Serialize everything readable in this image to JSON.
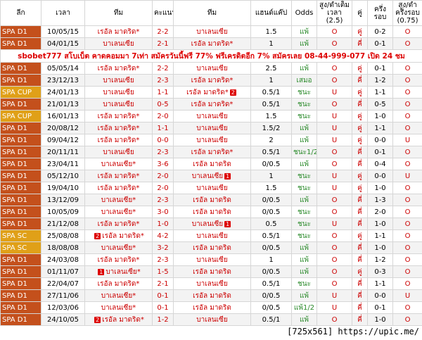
{
  "header": [
    "ลีก",
    "เวลา",
    "ทีม",
    "คะแนน",
    "ทีม",
    "แฮนด์แค๊ป",
    "Odds",
    "สูง/ต่ำเต็มเวลา (2.5)",
    "คู่",
    "ครึ่งรอบ",
    "สูง/ต่ำครึ่งรอบ (0.75)"
  ],
  "rows": [
    {
      "cells": [
        "SPA D1",
        "10/05/15",
        "เรอัล มาดริด*",
        "2-2",
        "บาเลนเซีย",
        "1.5",
        "แพ้",
        "O",
        "คู่",
        "0-2",
        "O"
      ],
      "league_color": "#c4501c"
    },
    {
      "cells": [
        "SPA D1",
        "04/01/15",
        "บาเลนเซีย",
        "2-1",
        "เรอัล มาดริด*",
        "1",
        "แพ้",
        "O",
        "คี่",
        "0-1",
        "O"
      ],
      "league_color": "#c4501c"
    },
    {
      "banner": "sbobet777 สโบเบ็ต คาดคอมมา 7เท่า สมัครวันนี้ฟรี 77% ฟรีเครดิตอีก 7% สมัครเลย 08-44-999-077 เปิด 24 ชม"
    },
    {
      "cells": [
        "SPA D1",
        "05/05/14",
        "เรอัล มาดริด*",
        "2-2",
        "บาเลนเซีย",
        "2.5",
        "แพ้",
        "O",
        "คู่",
        "0-1",
        "O"
      ],
      "league_color": "#c4501c"
    },
    {
      "cells": [
        "SPA D1",
        "23/12/13",
        "บาเลนเซีย",
        "2-3",
        "เรอัล มาดริด*",
        "1",
        "เสมอ",
        "O",
        "คี่",
        "1-2",
        "O"
      ],
      "league_color": "#c4501c"
    },
    {
      "cells": [
        "SPA CUP",
        "24/01/13",
        "บาเลนเซีย",
        "1-1",
        "เรอัล มาดริด*",
        "0.5/1",
        "ชนะ",
        "U",
        "คู่",
        "1-1",
        "O"
      ],
      "league_color": "#e0a018",
      "away_card": "2"
    },
    {
      "cells": [
        "SPA D1",
        "21/01/13",
        "บาเลนเซีย",
        "0-5",
        "เรอัล มาดริด*",
        "0.5/1",
        "ชนะ",
        "O",
        "คี่",
        "0-5",
        "O"
      ],
      "league_color": "#c4501c"
    },
    {
      "cells": [
        "SPA CUP",
        "16/01/13",
        "เรอัล มาดริด*",
        "2-0",
        "บาเลนเซีย",
        "1.5",
        "ชนะ",
        "U",
        "คู่",
        "1-0",
        "O"
      ],
      "league_color": "#e0a018"
    },
    {
      "cells": [
        "SPA D1",
        "20/08/12",
        "เรอัล มาดริด*",
        "1-1",
        "บาเลนเซีย",
        "1.5/2",
        "แพ้",
        "U",
        "คู่",
        "1-1",
        "O"
      ],
      "league_color": "#c4501c"
    },
    {
      "cells": [
        "SPA D1",
        "09/04/12",
        "เรอัล มาดริด*",
        "0-0",
        "บาเลนเซีย",
        "2",
        "แพ้",
        "U",
        "คู่",
        "0-0",
        "U"
      ],
      "league_color": "#c4501c"
    },
    {
      "cells": [
        "SPA D1",
        "20/11/11",
        "บาเลนเซีย",
        "2-3",
        "เรอัล มาดริด*",
        "0.5/1",
        "ชนะ1/2",
        "O",
        "คี่",
        "0-1",
        "O"
      ],
      "league_color": "#c4501c"
    },
    {
      "cells": [
        "SPA D1",
        "23/04/11",
        "บาเลนเซีย*",
        "3-6",
        "เรอัล มาดริด",
        "0/0.5",
        "แพ้",
        "O",
        "คี่",
        "0-4",
        "O"
      ],
      "league_color": "#c4501c"
    },
    {
      "cells": [
        "SPA D1",
        "05/12/10",
        "เรอัล มาดริด*",
        "2-0",
        "บาเลนเซีย",
        "1",
        "ชนะ",
        "U",
        "คู่",
        "0-0",
        "U"
      ],
      "league_color": "#c4501c",
      "away_card": "1"
    },
    {
      "cells": [
        "SPA D1",
        "19/04/10",
        "เรอัล มาดริด*",
        "2-0",
        "บาเลนเซีย",
        "1.5",
        "ชนะ",
        "U",
        "คู่",
        "1-0",
        "O"
      ],
      "league_color": "#c4501c"
    },
    {
      "cells": [
        "SPA D1",
        "13/12/09",
        "บาเลนเซีย*",
        "2-3",
        "เรอัล มาดริด",
        "0/0.5",
        "แพ้",
        "O",
        "คี่",
        "1-3",
        "O"
      ],
      "league_color": "#c4501c"
    },
    {
      "cells": [
        "SPA D1",
        "10/05/09",
        "บาเลนเซีย*",
        "3-0",
        "เรอัล มาดริด",
        "0/0.5",
        "ชนะ",
        "O",
        "คี่",
        "2-0",
        "O"
      ],
      "league_color": "#c4501c"
    },
    {
      "cells": [
        "SPA D1",
        "21/12/08",
        "เรอัล มาดริด*",
        "1-0",
        "บาเลนเซีย",
        "0.5",
        "ชนะ",
        "U",
        "คี่",
        "1-0",
        "O"
      ],
      "league_color": "#c4501c",
      "away_card": "1"
    },
    {
      "cells": [
        "SPA SC",
        "25/08/08",
        "เรอัล มาดริด*",
        "4-2",
        "บาเลนเซีย",
        "0.5/1",
        "ชนะ",
        "O",
        "คู่",
        "1-1",
        "O"
      ],
      "league_color": "#e0a018",
      "home_card": "2"
    },
    {
      "cells": [
        "SPA SC",
        "18/08/08",
        "บาเลนเซีย*",
        "3-2",
        "เรอัล มาดริด",
        "0/0.5",
        "แพ้",
        "O",
        "คี่",
        "1-0",
        "O"
      ],
      "league_color": "#e0a018"
    },
    {
      "cells": [
        "SPA D1",
        "24/03/08",
        "เรอัล มาดริด*",
        "2-3",
        "บาเลนเซีย",
        "1",
        "แพ้",
        "O",
        "คี่",
        "1-2",
        "O"
      ],
      "league_color": "#c4501c"
    },
    {
      "cells": [
        "SPA D1",
        "01/11/07",
        "บาเลนเซีย*",
        "1-5",
        "เรอัล มาดริด",
        "0/0.5",
        "แพ้",
        "O",
        "คู่",
        "0-3",
        "O"
      ],
      "league_color": "#c4501c",
      "home_card": "1"
    },
    {
      "cells": [
        "SPA D1",
        "22/04/07",
        "เรอัล มาดริด*",
        "2-1",
        "บาเลนเซีย",
        "0.5/1",
        "ชนะ",
        "O",
        "คี่",
        "1-1",
        "O"
      ],
      "league_color": "#c4501c"
    },
    {
      "cells": [
        "SPA D1",
        "27/11/06",
        "บาเลนเซีย*",
        "0-1",
        "เรอัล มาดริด",
        "0/0.5",
        "แพ้",
        "U",
        "คี่",
        "0-0",
        "U"
      ],
      "league_color": "#c4501c"
    },
    {
      "cells": [
        "SPA D1",
        "12/03/06",
        "บาเลนเซีย*",
        "0-1",
        "เรอัล มาดริด",
        "0/0.5",
        "แพ้1/2",
        "U",
        "คี่",
        "0-1",
        "O"
      ],
      "league_color": "#c4501c"
    },
    {
      "cells": [
        "SPA D1",
        "24/10/05",
        "เรอัล มาดริด*",
        "1-2",
        "บาเลนเซีย",
        "0.5/1",
        "แพ้",
        "O",
        "คี่",
        "1-0",
        "O"
      ],
      "league_color": "#c4501c",
      "home_card": "2"
    }
  ],
  "watermark": "[725x561] https://upic.me/"
}
